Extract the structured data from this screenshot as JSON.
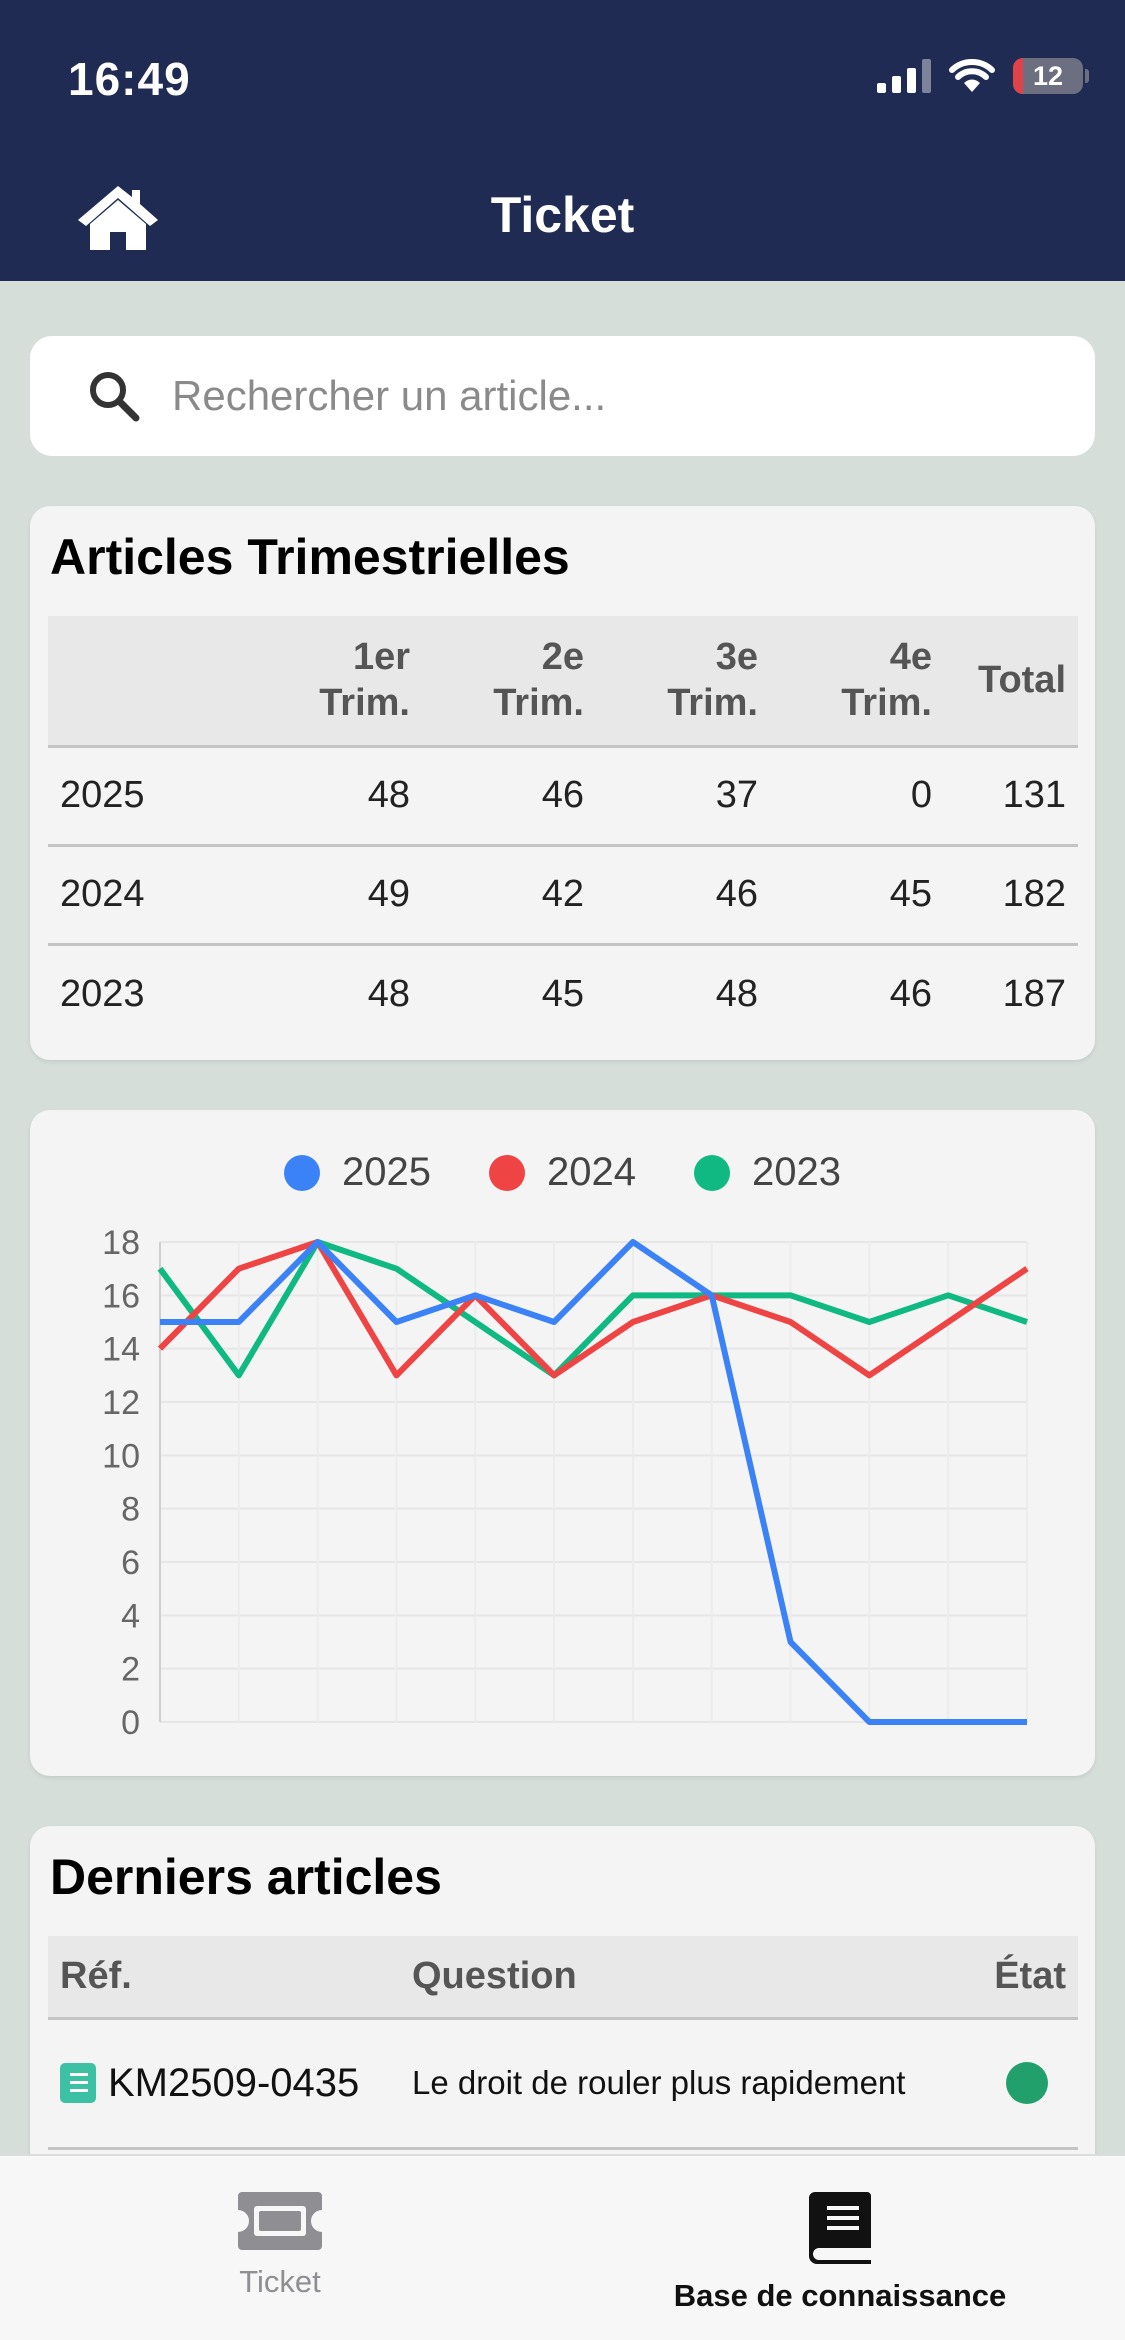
{
  "status_bar": {
    "time": "16:49",
    "battery": "12"
  },
  "header": {
    "title": "Ticket",
    "home_icon": "home-icon"
  },
  "search": {
    "placeholder": "Rechercher un article...",
    "value": ""
  },
  "quarterly": {
    "title": "Articles Trimestrielles",
    "columns": [
      {
        "line1": "",
        "line2": ""
      },
      {
        "line1": "1er",
        "line2": "Trim."
      },
      {
        "line1": "2e",
        "line2": "Trim."
      },
      {
        "line1": "3e",
        "line2": "Trim."
      },
      {
        "line1": "4e",
        "line2": "Trim."
      },
      {
        "line1": "Total",
        "line2": ""
      }
    ],
    "rows": [
      [
        "2025",
        "48",
        "46",
        "37",
        "0",
        "131"
      ],
      [
        "2024",
        "49",
        "42",
        "46",
        "45",
        "182"
      ],
      [
        "2023",
        "48",
        "45",
        "48",
        "46",
        "187"
      ]
    ]
  },
  "chart_data": {
    "type": "line",
    "x": [
      1,
      2,
      3,
      4,
      5,
      6,
      7,
      8,
      9,
      10,
      11,
      12
    ],
    "series": [
      {
        "name": "2025",
        "color": "#3b82f6",
        "values": [
          15,
          15,
          18,
          15,
          16,
          15,
          18,
          16,
          3,
          0,
          0,
          0
        ]
      },
      {
        "name": "2024",
        "color": "#ef4444",
        "values": [
          14,
          17,
          18,
          13,
          16,
          13,
          15,
          16,
          15,
          13,
          15,
          17
        ]
      },
      {
        "name": "2023",
        "color": "#10b981",
        "values": [
          17,
          13,
          18,
          17,
          15,
          13,
          16,
          16,
          16,
          15,
          16,
          15
        ]
      }
    ],
    "y_ticks": [
      "0",
      "2",
      "4",
      "6",
      "8",
      "10",
      "12",
      "14",
      "16",
      "18"
    ],
    "ylim": [
      0,
      18
    ],
    "grid": true,
    "legend": "top"
  },
  "latest": {
    "title": "Derniers articles",
    "headers": {
      "ref": "Réf.",
      "question": "Question",
      "state": "État"
    },
    "rows": [
      {
        "ref": "KM2509-0435",
        "question": "Le droit de rouler plus rapidement",
        "state_color": "#22a06b"
      }
    ]
  },
  "tabbar": {
    "tabs": [
      {
        "label": "Ticket",
        "icon": "ticket-icon",
        "active": false
      },
      {
        "label": "Base de connaissance",
        "icon": "book-icon",
        "active": true
      }
    ]
  }
}
